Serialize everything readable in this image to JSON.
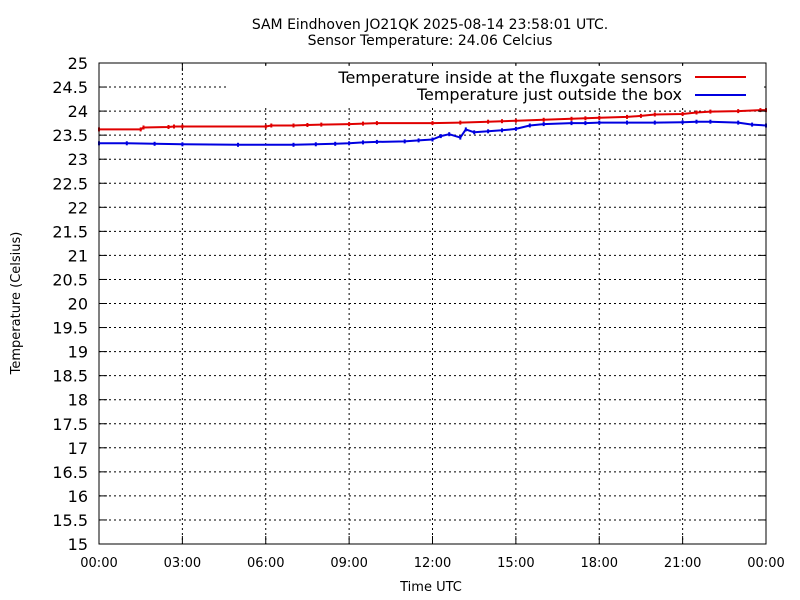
{
  "chart_data": {
    "type": "line",
    "title": "SAM Eindhoven JO21QK 2025-08-14 23:58:01 UTC.",
    "subtitle": "Sensor Temperature: 24.06 Celcius",
    "xlabel": "Time UTC",
    "ylabel": "Temperature (Celsius)",
    "xlim": [
      0,
      24
    ],
    "ylim": [
      15,
      25
    ],
    "x_ticks": [
      "00:00",
      "03:00",
      "06:00",
      "09:00",
      "12:00",
      "15:00",
      "18:00",
      "21:00",
      "00:00"
    ],
    "y_ticks": [
      "15",
      "15.5",
      "16",
      "16.5",
      "17",
      "17.5",
      "18",
      "18.5",
      "19",
      "19.5",
      "20",
      "20.5",
      "21",
      "21.5",
      "22",
      "22.5",
      "23",
      "23.5",
      "24",
      "24.5",
      "25"
    ],
    "grid": true,
    "legend_position": "top-right",
    "series": [
      {
        "name": "Temperature inside at the fluxgate sensors",
        "color": "#e00000",
        "x": [
          0,
          1.5,
          1.6,
          2.5,
          2.7,
          3.0,
          6.0,
          6.2,
          7.0,
          7.5,
          8.0,
          9.0,
          9.5,
          10.0,
          12.0,
          13.0,
          14.0,
          14.5,
          15.0,
          16.0,
          17.0,
          17.5,
          18.0,
          19.0,
          19.5,
          20.0,
          21.0,
          21.5,
          22.0,
          23.0,
          23.8,
          24.0
        ],
        "y": [
          23.62,
          23.62,
          23.66,
          23.67,
          23.68,
          23.68,
          23.68,
          23.7,
          23.7,
          23.71,
          23.72,
          23.73,
          23.74,
          23.75,
          23.75,
          23.76,
          23.78,
          23.79,
          23.8,
          23.82,
          23.84,
          23.85,
          23.86,
          23.88,
          23.9,
          23.93,
          23.94,
          23.97,
          23.99,
          24.0,
          24.02,
          24.02
        ]
      },
      {
        "name": "Temperature just outside the box",
        "color": "#0000e0",
        "x": [
          0,
          1.0,
          2.0,
          3.0,
          5.0,
          7.0,
          7.8,
          8.5,
          9.0,
          9.5,
          10.0,
          11.0,
          11.5,
          12.0,
          12.3,
          12.6,
          13.0,
          13.2,
          13.5,
          14.0,
          14.5,
          15.0,
          15.5,
          16.0,
          17.0,
          17.5,
          18.0,
          19.0,
          20.0,
          21.0,
          21.5,
          22.0,
          23.0,
          23.5,
          24.0
        ],
        "y": [
          23.33,
          23.33,
          23.32,
          23.31,
          23.3,
          23.3,
          23.31,
          23.32,
          23.33,
          23.35,
          23.36,
          23.37,
          23.39,
          23.41,
          23.48,
          23.52,
          23.45,
          23.62,
          23.56,
          23.58,
          23.6,
          23.63,
          23.7,
          23.73,
          23.75,
          23.75,
          23.76,
          23.76,
          23.76,
          23.77,
          23.78,
          23.78,
          23.76,
          23.72,
          23.7
        ]
      }
    ]
  }
}
